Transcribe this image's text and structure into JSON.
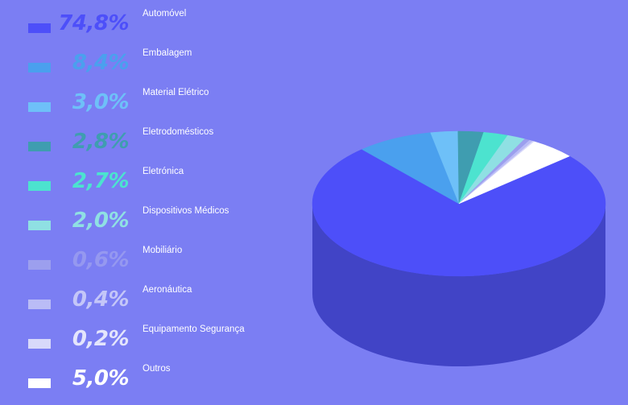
{
  "chart_data": {
    "type": "pie",
    "three_d": true,
    "title": "",
    "legend_position": "left",
    "slices": [
      {
        "label": "Automóvel",
        "value_text": "74,8%",
        "value": 74.8,
        "color": "#4d4ff9",
        "text_color": "#4d4ff9"
      },
      {
        "label": "Embalagem",
        "value_text": "8,4%",
        "value": 8.4,
        "color": "#4aa0ee",
        "text_color": "#4aa0ee"
      },
      {
        "label": "Material Elétrico",
        "value_text": "3,0%",
        "value": 3.0,
        "color": "#6ec0f8",
        "text_color": "#6ec0f8"
      },
      {
        "label": "Eletrodomésticos",
        "value_text": "2,8%",
        "value": 2.8,
        "color": "#3f9db0",
        "text_color": "#3f9db0"
      },
      {
        "label": "Eletrónica",
        "value_text": "2,7%",
        "value": 2.7,
        "color": "#4ce3cf",
        "text_color": "#4ce3cf"
      },
      {
        "label": "Dispositivos Médicos",
        "value_text": "2,0%",
        "value": 2.0,
        "color": "#8fe0e3",
        "text_color": "#8fe0e3"
      },
      {
        "label": "Mobiliário",
        "value_text": "0,6%",
        "value": 0.6,
        "color": "#9c9fee",
        "text_color": "#9598f0"
      },
      {
        "label": "Aeronáutica",
        "value_text": "0,4%",
        "value": 0.4,
        "color": "#babcf6",
        "text_color": "#c4c6f8"
      },
      {
        "label": "Equipamento Segurança",
        "value_text": "0,2%",
        "value": 0.2,
        "color": "#d8d9fa",
        "text_color": "#e4e5fc"
      },
      {
        "label": "Outros",
        "value_text": "5,0%",
        "value": 5.0,
        "color": "#ffffff",
        "text_color": "#ffffff"
      }
    ]
  },
  "colors": {
    "background": "#7b7ef3",
    "pie_side": "#4144c6"
  }
}
